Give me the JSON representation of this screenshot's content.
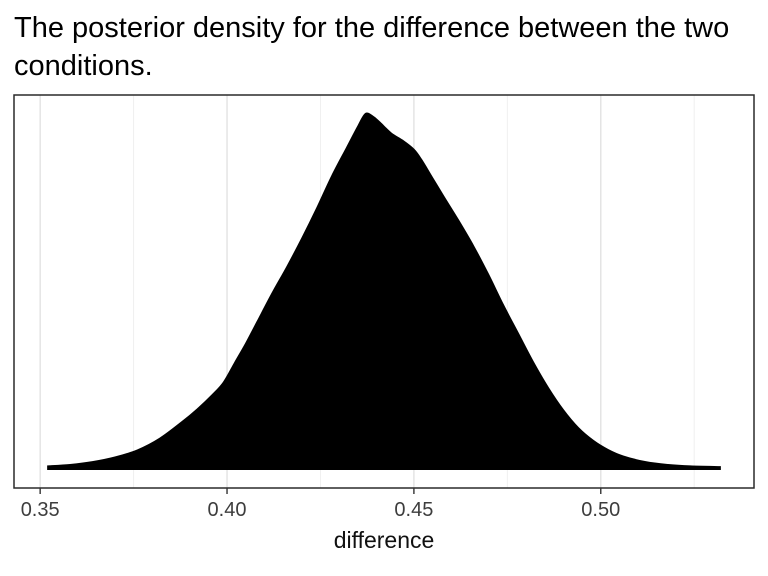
{
  "page": {
    "background": "#ffffff"
  },
  "chart_data": {
    "type": "area",
    "title": "The posterior density for the difference between the two conditions.",
    "xlabel": "difference",
    "ylabel": "",
    "legend": "none",
    "grid": "vertical-only",
    "xlim": [
      0.343,
      0.541
    ],
    "ylim": [
      -0.052,
      1.052
    ],
    "x_major_ticks": [
      0.35,
      0.4,
      0.45,
      0.5
    ],
    "x_tick_labels": [
      "0.35",
      "0.40",
      "0.45",
      "0.50"
    ],
    "x_minor_ticks": [
      0.375,
      0.425,
      0.475,
      0.525
    ],
    "series": [
      {
        "name": "posterior-density",
        "fill": "#000000",
        "x": [
          0.352,
          0.358,
          0.364,
          0.37,
          0.376,
          0.382,
          0.388,
          0.392,
          0.396,
          0.399,
          0.402,
          0.405,
          0.408,
          0.412,
          0.416,
          0.42,
          0.424,
          0.428,
          0.432,
          0.435,
          0.437,
          0.439,
          0.441,
          0.444,
          0.447,
          0.45,
          0.452,
          0.455,
          0.458,
          0.462,
          0.466,
          0.47,
          0.474,
          0.478,
          0.482,
          0.486,
          0.49,
          0.494,
          0.498,
          0.502,
          0.506,
          0.512,
          0.518,
          0.524,
          0.532
        ],
        "y": [
          0.01,
          0.014,
          0.022,
          0.035,
          0.055,
          0.088,
          0.135,
          0.17,
          0.21,
          0.245,
          0.3,
          0.355,
          0.415,
          0.495,
          0.57,
          0.65,
          0.735,
          0.825,
          0.905,
          0.965,
          1.0,
          0.993,
          0.975,
          0.945,
          0.925,
          0.9,
          0.872,
          0.82,
          0.768,
          0.7,
          0.628,
          0.548,
          0.462,
          0.382,
          0.302,
          0.23,
          0.168,
          0.118,
          0.082,
          0.056,
          0.038,
          0.022,
          0.014,
          0.01,
          0.008
        ]
      }
    ],
    "style": {
      "fill_color": "#000000",
      "grid_major_color": "#e2e2e2",
      "grid_minor_color": "#eeeeee",
      "panel_border_color": "#2a2a2a",
      "tick_color": "#333333",
      "tick_label_color": "#3d3d3d",
      "axis_title_color": "#111111",
      "title_color": "#000000"
    }
  }
}
